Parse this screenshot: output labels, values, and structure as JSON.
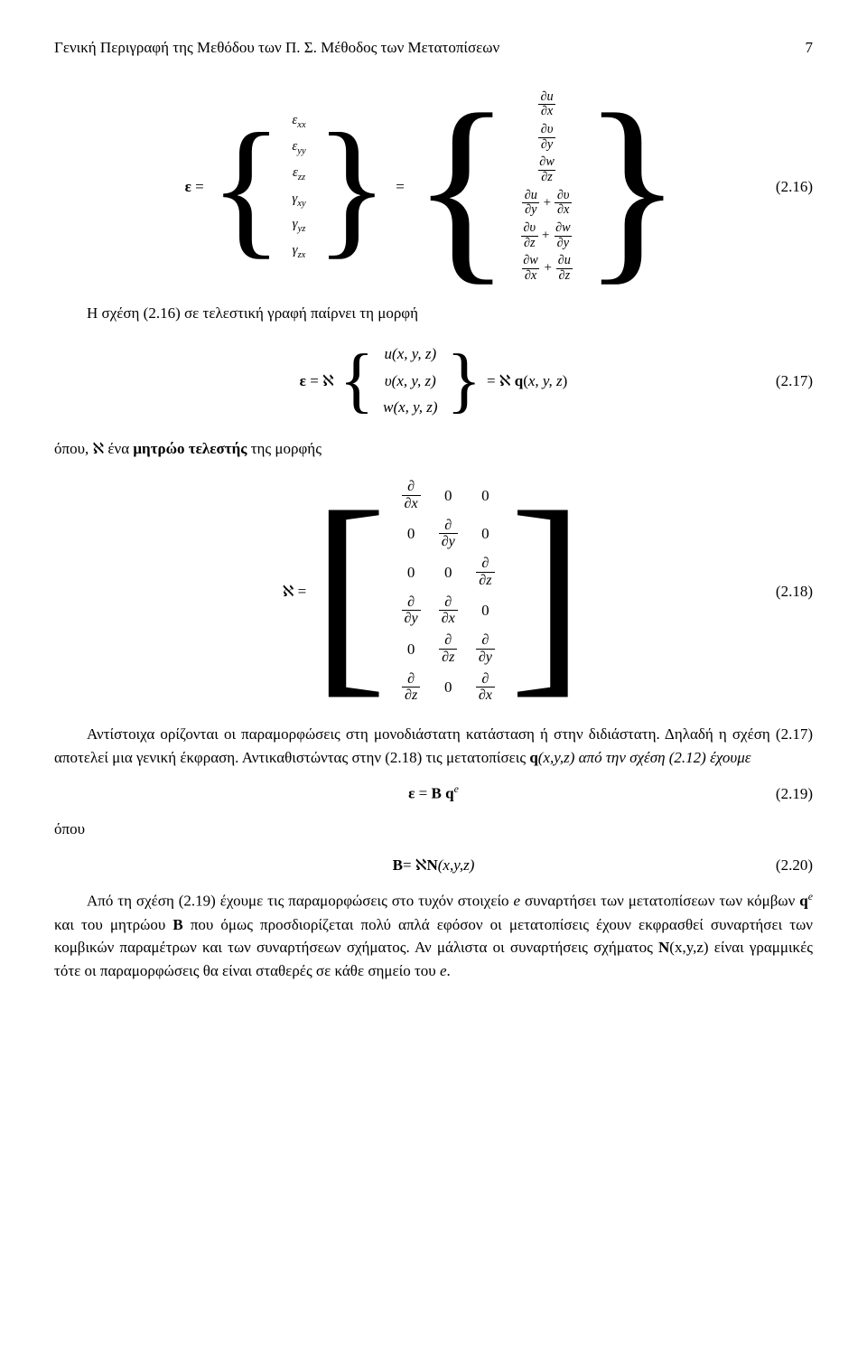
{
  "header": {
    "title": "Γενική Περιγραφή της Μεθόδου των Π. Σ. Μέθοδος των Μετατοπίσεων",
    "page_number": "7"
  },
  "eq216": {
    "lhs_symbol": "ε",
    "strain_vector": [
      "ε",
      "ε",
      "ε",
      "γ",
      "γ",
      "γ"
    ],
    "strain_subs": [
      "xx",
      "yy",
      "zz",
      "xy",
      "yz",
      "zx"
    ],
    "rhs": [
      {
        "type": "single",
        "num": "∂u",
        "den": "∂x"
      },
      {
        "type": "single",
        "num": "∂υ",
        "den": "∂y"
      },
      {
        "type": "single",
        "num": "∂w",
        "den": "∂z"
      },
      {
        "type": "sum",
        "a_num": "∂u",
        "a_den": "∂y",
        "b_num": "∂υ",
        "b_den": "∂x"
      },
      {
        "type": "sum",
        "a_num": "∂υ",
        "a_den": "∂z",
        "b_num": "∂w",
        "b_den": "∂y"
      },
      {
        "type": "sum",
        "a_num": "∂w",
        "a_den": "∂x",
        "b_num": "∂u",
        "b_den": "∂z"
      }
    ],
    "number": "(2.16)"
  },
  "text_216": "Η σχέση (2.16) σε τελεστική γραφή παίρνει τη μορφή",
  "eq217": {
    "lhs": "ε = ℵ",
    "vec": [
      "u(x, y, z)",
      "υ(x, y, z)",
      "w(x, y, z)"
    ],
    "rhs": "= ℵ q(x, y, z)",
    "q_bold": "q",
    "number": "(2.17)"
  },
  "text_217": "όπου, ℵ ένα μητρώο τελεστής της μορφής",
  "aleph_bold_note": "μητρώο τελεστής",
  "eq218": {
    "lhs": "ℵ =",
    "rows": [
      [
        "d/dx",
        "0",
        "0"
      ],
      [
        "0",
        "d/dy",
        "0"
      ],
      [
        "0",
        "0",
        "d/dz"
      ],
      [
        "d/dy",
        "d/dx",
        "0"
      ],
      [
        "0",
        "d/dz",
        "d/dy"
      ],
      [
        "d/dz",
        "0",
        "d/dx"
      ]
    ],
    "partial_map": {
      "d/dx": {
        "num": "∂",
        "den": "∂x"
      },
      "d/dy": {
        "num": "∂",
        "den": "∂y"
      },
      "d/dz": {
        "num": "∂",
        "den": "∂z"
      }
    },
    "number": "(2.18)"
  },
  "para_main": "Αντίστοιχα ορίζονται οι παραμορφώσεις στη μονοδιάστατη κατάσταση ή στην διδιάστατη. Δηλαδή η σχέση (2.17) αποτελεί μια γενική έκφραση. Αντικαθιστώντας στην (2.18) τις μετατοπίσεις ",
  "para_main_b": "q",
  "para_main_c": "(x,y,z) από την σχέση (2.12) έχουμε",
  "eq219": {
    "text_l": "ε",
    "text_m": "= B q",
    "sup": "e",
    "number": "(2.19)"
  },
  "opou": "όπου",
  "eq220": {
    "text": "B= ℵN(x,y,z)",
    "B": "B",
    "N": "N",
    "number": "(2.20)"
  },
  "para_final_a": "Από τη σχέση (2.19) έχουμε τις παραμορφώσεις στο τυχόν στοιχείο ",
  "para_final_e1": "e",
  "para_final_b": " συναρτήσει των μετατοπίσεων των κόμβων ",
  "para_final_q": "q",
  "para_final_qs": "e",
  "para_final_c": " και του μητρώου ",
  "para_final_B": "B",
  "para_final_d": " που όμως προσδιορίζεται πολύ απλά εφόσον οι μετατοπίσεις έχουν εκφρασθεί συναρτήσει των κομβικών παραμέτρων και των συναρτήσεων σχήματος. Αν μάλιστα οι συναρτήσεις σχήματος ",
  "para_final_N": "N",
  "para_final_e": "(x,y,z) είναι γραμμικές τότε οι παραμορφώσεις θα είναι σταθερές σε κάθε σημείο του ",
  "para_final_e2": "e",
  "para_final_f": "."
}
